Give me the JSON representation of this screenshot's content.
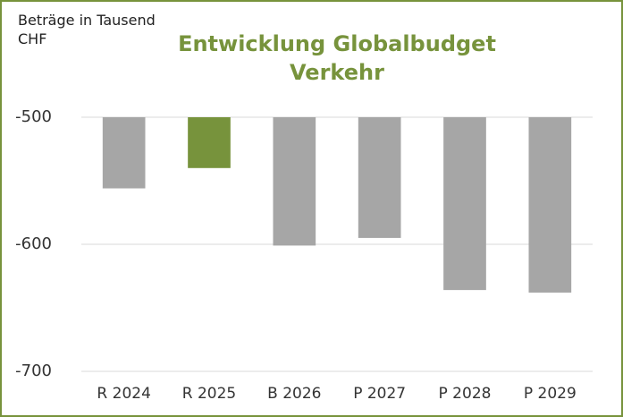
{
  "chart_data": {
    "type": "bar",
    "title": "Entwicklung Globalbudget Verkehr",
    "y_label": "Beträge in Tausend CHF",
    "categories": [
      "R 2024",
      "R 2025",
      "B 2026",
      "P 2027",
      "P 2028",
      "P 2029"
    ],
    "values": [
      -556,
      -540,
      -601,
      -595,
      -636,
      -638
    ],
    "colors": [
      "#a6a6a6",
      "#77933c",
      "#a6a6a6",
      "#a6a6a6",
      "#a6a6a6",
      "#a6a6a6"
    ],
    "ylim": [
      -700,
      -500
    ],
    "yticks": [
      -700,
      -600,
      -500
    ],
    "grid": true
  }
}
